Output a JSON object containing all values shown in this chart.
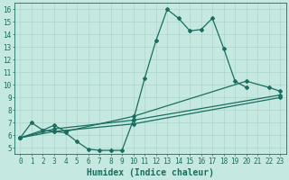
{
  "xlabel": "Humidex (Indice chaleur)",
  "bg_color": "#c5e8e0",
  "line_color": "#1a6e60",
  "xlim": [
    -0.5,
    23.5
  ],
  "ylim": [
    4.5,
    16.5
  ],
  "xticks": [
    0,
    1,
    2,
    3,
    4,
    5,
    6,
    7,
    8,
    9,
    10,
    11,
    12,
    13,
    14,
    15,
    16,
    17,
    18,
    19,
    20,
    21,
    22,
    23
  ],
  "yticks": [
    5,
    6,
    7,
    8,
    9,
    10,
    11,
    12,
    13,
    14,
    15,
    16
  ],
  "line1_x": [
    0,
    1,
    2,
    3,
    4,
    5,
    6,
    7,
    8,
    9,
    10,
    11,
    12,
    13,
    14,
    15,
    16,
    17,
    18,
    19,
    20
  ],
  "line1_y": [
    5.8,
    7.0,
    6.4,
    6.3,
    6.2,
    5.5,
    4.9,
    4.8,
    4.8,
    4.8,
    7.2,
    10.5,
    13.5,
    16.0,
    15.3,
    14.3,
    14.4,
    15.3,
    12.9,
    10.3,
    9.8
  ],
  "line2_x": [
    0,
    2,
    3,
    4,
    10,
    20,
    22,
    23
  ],
  "line2_y": [
    5.8,
    6.4,
    6.8,
    6.3,
    7.5,
    10.3,
    9.8,
    9.5
  ],
  "line3_x": [
    0,
    3,
    10,
    23
  ],
  "line3_y": [
    5.8,
    6.5,
    7.2,
    9.2
  ],
  "line4_x": [
    0,
    3,
    10,
    23
  ],
  "line4_y": [
    5.8,
    6.3,
    6.9,
    9.0
  ],
  "font_color": "#1a6e60",
  "grid_color": "#a8d0c8",
  "markersize": 2.0,
  "linewidth": 0.9,
  "xlabel_fontsize": 7,
  "tick_fontsize": 5.5,
  "figwidth": 3.2,
  "figheight": 2.0,
  "dpi": 100
}
